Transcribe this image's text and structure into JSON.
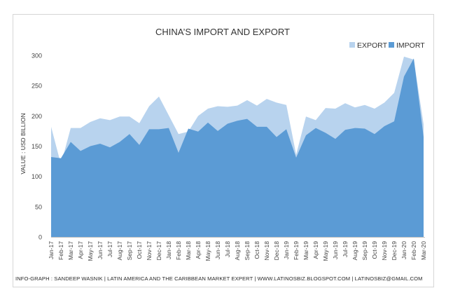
{
  "chart_data": {
    "type": "area",
    "title": "CHINA’S IMPORT AND EXPORT",
    "ylabel": "VALUE : USD BILLION",
    "xlabel": "",
    "ylim": [
      0,
      300
    ],
    "yticks": [
      0,
      50,
      100,
      150,
      200,
      250,
      300
    ],
    "grid": false,
    "legend_position": "top-right",
    "categories": [
      "Jan-17",
      "Feb-17",
      "Mar-17",
      "Apr-17",
      "May-17",
      "Jun-17",
      "Jul-17",
      "Aug-17",
      "Sep-17",
      "Oct-17",
      "Nov-17",
      "Dec-17",
      "Jan-18",
      "Feb-18",
      "Mar-18",
      "Apr-18",
      "May-18",
      "Jun-18",
      "Jul-18",
      "Aug-18",
      "Sep-18",
      "Oct-18",
      "Nov-18",
      "Dec-18",
      "Jan-19",
      "Feb-19",
      "Mar-19",
      "Apr-19",
      "May-19",
      "Jun-19",
      "Jul-19",
      "Aug-19",
      "Sep-19",
      "Oct-19",
      "Nov-19",
      "Dec-19",
      "Jan-20",
      "Feb-20",
      "Mar-20"
    ],
    "series": [
      {
        "name": "EXPORT",
        "color": "#b8d3ee",
        "values": [
          182,
          120,
          180,
          180,
          190,
          196,
          193,
          199,
          199,
          188,
          216,
          232,
          201,
          170,
          174,
          200,
          212,
          216,
          215,
          217,
          226,
          217,
          228,
          222,
          218,
          136,
          199,
          193,
          213,
          212,
          221,
          214,
          218,
          212,
          222,
          238,
          298,
          293,
          186
        ]
      },
      {
        "name": "IMPORT",
        "color": "#5b9bd5",
        "values": [
          132,
          130,
          157,
          142,
          150,
          154,
          148,
          157,
          170,
          152,
          178,
          178,
          180,
          139,
          179,
          174,
          189,
          175,
          187,
          192,
          195,
          182,
          182,
          165,
          178,
          131,
          168,
          180,
          172,
          162,
          177,
          180,
          179,
          170,
          183,
          191,
          265,
          295,
          165
        ]
      }
    ]
  },
  "footer": "INFO-GRAPH : SANDEEP WASNIK | LATIN AMERICA AND THE CARIBBEAN MARKET EXPERT | WWW.LATINOSBIZ.BLOGSPOT.COM | LATINOSBIZ@GMAIL.COM"
}
